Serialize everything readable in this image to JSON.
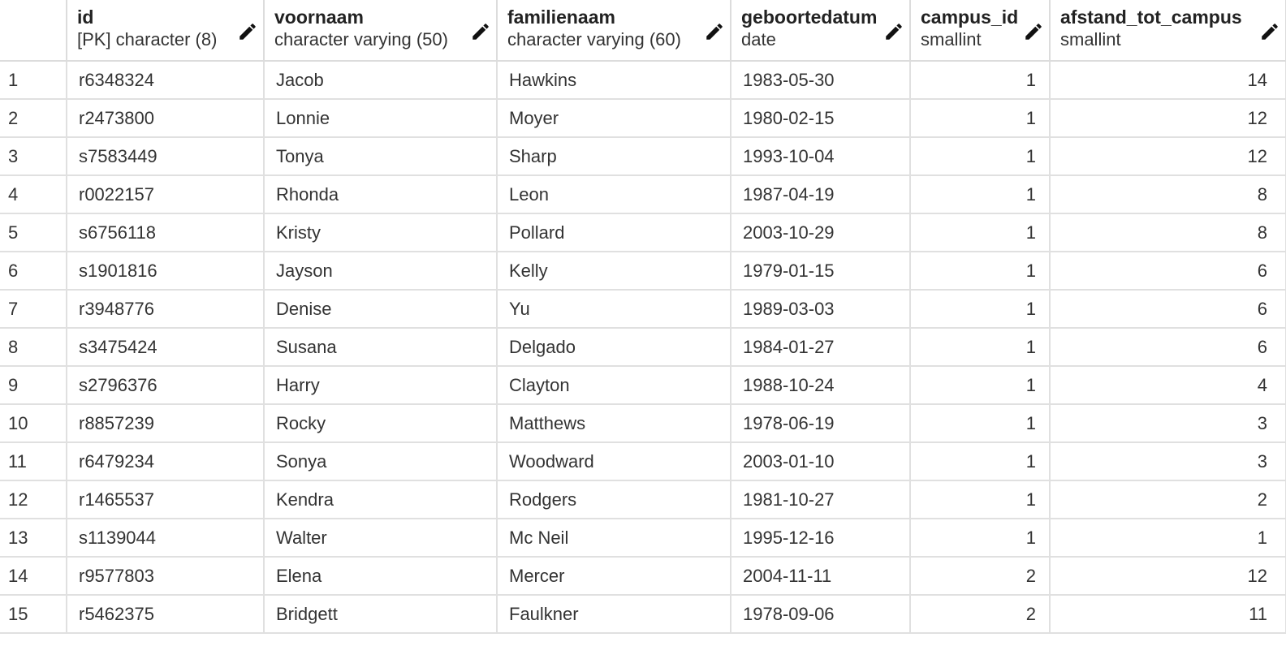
{
  "columns": [
    {
      "name": "id",
      "type": "[PK] character (8)"
    },
    {
      "name": "voornaam",
      "type": "character varying (50)"
    },
    {
      "name": "familienaam",
      "type": "character varying (60)"
    },
    {
      "name": "geboortedatum",
      "type": "date"
    },
    {
      "name": "campus_id",
      "type": "smallint"
    },
    {
      "name": "afstand_tot_campus",
      "type": "smallint"
    }
  ],
  "rows": [
    {
      "n": "1",
      "id": "r6348324",
      "voornaam": "Jacob",
      "familienaam": "Hawkins",
      "geboortedatum": "1983-05-30",
      "campus_id": "1",
      "afstand": "14"
    },
    {
      "n": "2",
      "id": "r2473800",
      "voornaam": "Lonnie",
      "familienaam": "Moyer",
      "geboortedatum": "1980-02-15",
      "campus_id": "1",
      "afstand": "12"
    },
    {
      "n": "3",
      "id": "s7583449",
      "voornaam": "Tonya",
      "familienaam": "Sharp",
      "geboortedatum": "1993-10-04",
      "campus_id": "1",
      "afstand": "12"
    },
    {
      "n": "4",
      "id": "r0022157",
      "voornaam": "Rhonda",
      "familienaam": "Leon",
      "geboortedatum": "1987-04-19",
      "campus_id": "1",
      "afstand": "8"
    },
    {
      "n": "5",
      "id": "s6756118",
      "voornaam": "Kristy",
      "familienaam": "Pollard",
      "geboortedatum": "2003-10-29",
      "campus_id": "1",
      "afstand": "8"
    },
    {
      "n": "6",
      "id": "s1901816",
      "voornaam": "Jayson",
      "familienaam": "Kelly",
      "geboortedatum": "1979-01-15",
      "campus_id": "1",
      "afstand": "6"
    },
    {
      "n": "7",
      "id": "r3948776",
      "voornaam": "Denise",
      "familienaam": "Yu",
      "geboortedatum": "1989-03-03",
      "campus_id": "1",
      "afstand": "6"
    },
    {
      "n": "8",
      "id": "s3475424",
      "voornaam": "Susana",
      "familienaam": "Delgado",
      "geboortedatum": "1984-01-27",
      "campus_id": "1",
      "afstand": "6"
    },
    {
      "n": "9",
      "id": "s2796376",
      "voornaam": "Harry",
      "familienaam": "Clayton",
      "geboortedatum": "1988-10-24",
      "campus_id": "1",
      "afstand": "4"
    },
    {
      "n": "10",
      "id": "r8857239",
      "voornaam": "Rocky",
      "familienaam": "Matthews",
      "geboortedatum": "1978-06-19",
      "campus_id": "1",
      "afstand": "3"
    },
    {
      "n": "11",
      "id": "r6479234",
      "voornaam": "Sonya",
      "familienaam": "Woodward",
      "geboortedatum": "2003-01-10",
      "campus_id": "1",
      "afstand": "3"
    },
    {
      "n": "12",
      "id": "r1465537",
      "voornaam": "Kendra",
      "familienaam": "Rodgers",
      "geboortedatum": "1981-10-27",
      "campus_id": "1",
      "afstand": "2"
    },
    {
      "n": "13",
      "id": "s1139044",
      "voornaam": "Walter",
      "familienaam": "Mc Neil",
      "geboortedatum": "1995-12-16",
      "campus_id": "1",
      "afstand": "1"
    },
    {
      "n": "14",
      "id": "r9577803",
      "voornaam": "Elena",
      "familienaam": "Mercer",
      "geboortedatum": "2004-11-11",
      "campus_id": "2",
      "afstand": "12"
    },
    {
      "n": "15",
      "id": "r5462375",
      "voornaam": "Bridgett",
      "familienaam": "Faulkner",
      "geboortedatum": "1978-09-06",
      "campus_id": "2",
      "afstand": "11"
    }
  ],
  "icons": {
    "column_edit": "pencil-icon"
  },
  "colors": {
    "grid_line": "#e0e0e0",
    "text": "#333333",
    "header_text": "#222222"
  }
}
